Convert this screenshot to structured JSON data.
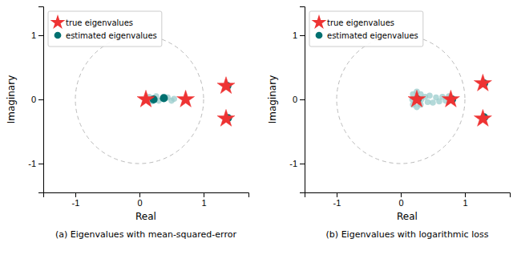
{
  "chart_data": [
    {
      "type": "scatter",
      "title": "(a) Eigenvalues with mean-squared-error",
      "xlabel": "Real",
      "ylabel": "Imaginary",
      "xlim": [
        -1.5,
        1.7
      ],
      "ylim": [
        -1.45,
        1.45
      ],
      "xticks": [
        -1,
        0,
        1
      ],
      "yticks": [
        -1,
        0,
        1
      ],
      "legend": "upper left",
      "series": [
        {
          "name": "true eigenvalues",
          "color": "#EE3333",
          "marker": "star",
          "x": [
            0.1,
            0.72,
            1.35,
            1.35
          ],
          "values": [
            0.0,
            0.0,
            0.21,
            -0.3
          ]
        },
        {
          "name": "estimated eigenvalues",
          "color": "#007070",
          "marker": "circle",
          "x": [
            0.22,
            0.38,
            1.37,
            1.38
          ],
          "values": [
            0.0,
            0.02,
            0.21,
            -0.29
          ]
        },
        {
          "color": "#99CCCC",
          "marker": "circle",
          "x": [
            0.15,
            0.2,
            0.26,
            0.3,
            0.44,
            0.5,
            0.54
          ],
          "values": [
            0.04,
            -0.03,
            0.05,
            -0.02,
            0.03,
            -0.02,
            0.01
          ]
        }
      ]
    },
    {
      "type": "scatter",
      "title": "(b) Eigenvalues with logarithmic loss",
      "xlabel": "Real",
      "ylabel": "Imaginary",
      "xlim": [
        -1.5,
        1.7
      ],
      "ylim": [
        -1.45,
        1.45
      ],
      "xticks": [
        -1,
        0,
        1
      ],
      "yticks": [
        -1,
        0,
        1
      ],
      "legend": "upper left",
      "series": [
        {
          "name": "true eigenvalues",
          "color": "#EE3333",
          "marker": "star",
          "x": [
            0.25,
            0.78,
            1.28,
            1.28
          ],
          "values": [
            0.0,
            0.0,
            0.25,
            -0.3
          ]
        },
        {
          "name": "estimated eigenvalues",
          "color": "#007070",
          "marker": "circle",
          "x": [
            0.26,
            0.8,
            1.3,
            1.3
          ],
          "values": [
            0.0,
            0.0,
            0.25,
            -0.28
          ]
        },
        {
          "color": "#99CCCC",
          "marker": "circle",
          "x": [
            0.18,
            0.32,
            0.25,
            0.25,
            0.19,
            0.31,
            0.19,
            0.31,
            0.38,
            0.42,
            0.45,
            0.5,
            0.55,
            0.6,
            0.65,
            0.7,
            0.75
          ],
          "values": [
            0.0,
            0.0,
            0.12,
            -0.12,
            0.08,
            -0.08,
            -0.08,
            0.08,
            0.04,
            -0.04,
            0.06,
            -0.05,
            0.03,
            -0.03,
            0.04,
            -0.02,
            0.05
          ]
        }
      ]
    }
  ]
}
